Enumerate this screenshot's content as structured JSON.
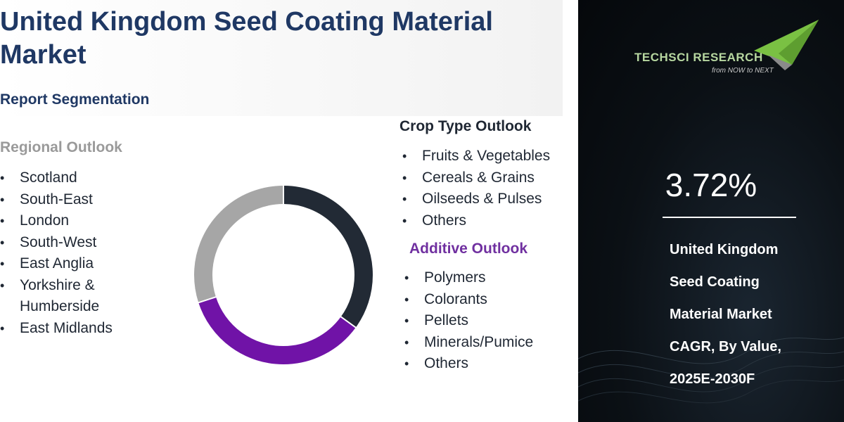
{
  "header": {
    "title": "United Kingdom Seed Coating Material Market",
    "subtitle": "Report Segmentation"
  },
  "regional": {
    "heading": "Regional Outlook",
    "items": [
      "Scotland",
      "South-East",
      "London",
      "South-West",
      "East Anglia",
      "Yorkshire & Humberside",
      "East Midlands"
    ]
  },
  "crop_type": {
    "heading": "Crop Type Outlook",
    "items": [
      "Fruits & Vegetables",
      "Cereals & Grains",
      "Oilseeds & Pulses",
      "Others"
    ]
  },
  "additive": {
    "heading": "Additive Outlook",
    "items": [
      "Polymers",
      "Colorants",
      "Pellets",
      "Minerals/Pumice",
      "Others"
    ]
  },
  "donut": {
    "segments": [
      {
        "value": 0.35,
        "color": "#222a35"
      },
      {
        "value": 0.35,
        "color": "#7013a7"
      },
      {
        "value": 0.3,
        "color": "#a6a6a6"
      }
    ]
  },
  "sidebar": {
    "brand": "TECHSCI RESEARCH",
    "tagline": "from NOW to NEXT",
    "cagr": "3.72%",
    "description_lines": [
      "United Kingdom",
      "Seed Coating",
      "Material Market",
      "CAGR, By Value,",
      "2025E-2030F"
    ]
  },
  "colors": {
    "title": "#1f3864",
    "additive_heading": "#7030a0",
    "regional_heading": "#9a9a9a",
    "sidebar_bg": "#0b1015",
    "logo_green": "#7ac143"
  }
}
